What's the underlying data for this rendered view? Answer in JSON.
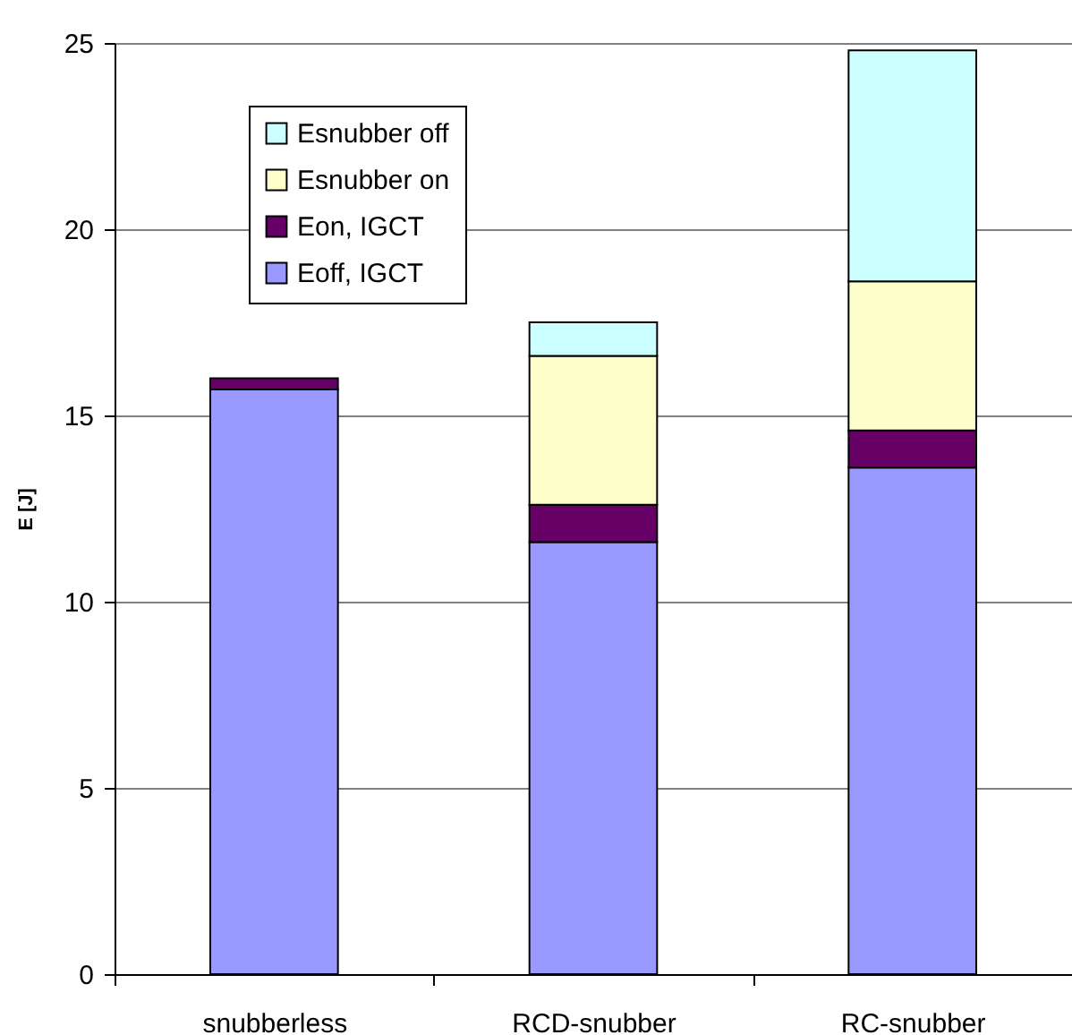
{
  "chart_data": {
    "type": "bar",
    "ylabel": "E [J]",
    "categories": [
      "snubberless",
      "RCD-snubber",
      "RC-snubber"
    ],
    "stacked": true,
    "series": [
      {
        "name": "Eoff, IGCT",
        "color": "#9999ff",
        "values": [
          15.7,
          11.6,
          13.6
        ]
      },
      {
        "name": "Eon, IGCT",
        "color": "#660066",
        "values": [
          0.3,
          1.0,
          1.0
        ]
      },
      {
        "name": "Esnubber on",
        "color": "#ffffcc",
        "values": [
          null,
          4.0,
          4.0
        ]
      },
      {
        "name": "Esnubber off",
        "color": "#ccffff",
        "values": [
          null,
          0.9,
          6.2
        ]
      }
    ],
    "ylim": [
      0,
      25
    ],
    "yticks": [
      0,
      5,
      10,
      15,
      20,
      25
    ],
    "grid": "y",
    "legend": "top left"
  }
}
